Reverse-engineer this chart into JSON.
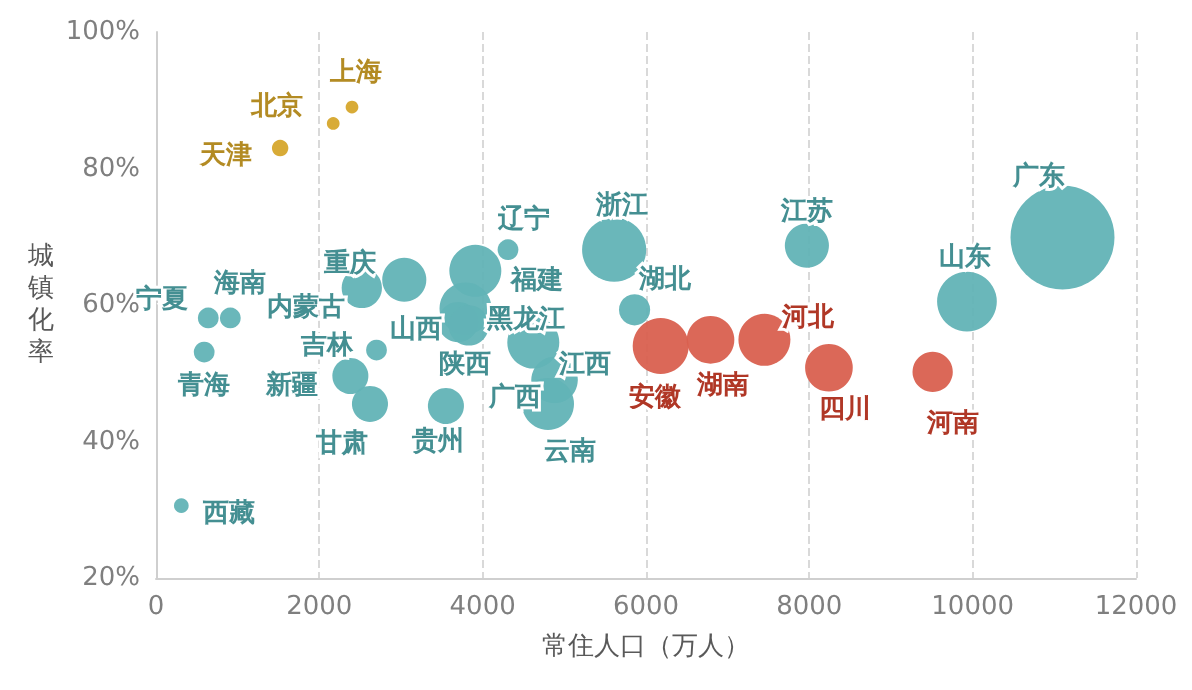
{
  "chart_data": {
    "type": "bubble",
    "xlabel": "常住人口（万人）",
    "ylabel": "城镇化率",
    "xlim": [
      0,
      12000
    ],
    "xticks": [
      0,
      2000,
      4000,
      6000,
      8000,
      10000,
      12000
    ],
    "ylim": [
      20,
      100
    ],
    "yticks": [
      {
        "value": 20,
        "label": "20%"
      },
      {
        "value": 40,
        "label": "40%"
      },
      {
        "value": 60,
        "label": "60%"
      },
      {
        "value": 80,
        "label": "80%"
      },
      {
        "value": 100,
        "label": "100%"
      }
    ],
    "grid": "x",
    "series": [
      {
        "color": "#d6a62c",
        "x": [
          2400,
          2170,
          1520
        ],
        "values": [
          89,
          86.6,
          83
        ],
        "sizes": [
          0.015,
          0.015,
          0.025
        ]
      },
      {
        "color": "#62b3b6",
        "x": [
          640,
          910,
          590,
          310,
          2520,
          3040,
          2700,
          2380,
          2620,
          3550,
          3700,
          3910,
          3790,
          3830,
          4310,
          4620,
          4880,
          4800,
          5610,
          5860,
          7970,
          9930,
          11100
        ],
        "values": [
          58.1,
          58.1,
          53.1,
          30.6,
          62.5,
          63.7,
          53.4,
          49.6,
          45.5,
          45.2,
          57.5,
          65,
          59.5,
          57,
          68.1,
          54.5,
          49,
          45.5,
          68.1,
          59.3,
          68.7,
          60.5,
          69.9
        ],
        "sizes": [
          0.04,
          0.04,
          0.04,
          0.02,
          0.15,
          0.18,
          0.04,
          0.12,
          0.12,
          0.12,
          0.15,
          0.25,
          0.25,
          0.15,
          0.04,
          0.25,
          0.2,
          0.25,
          0.38,
          0.09,
          0.18,
          0.33,
          1
        ]
      },
      {
        "color": "#d9604f",
        "x": [
          6180,
          6790,
          7450,
          8240,
          9510
        ],
        "values": [
          54,
          54.9,
          54.9,
          50.8,
          50.2
        ],
        "sizes": [
          0.29,
          0.21,
          0.25,
          0.21,
          0.15
        ]
      }
    ],
    "annotations": [
      {
        "text": "上海",
        "x": 2400,
        "y": 89
      },
      {
        "text": "北京",
        "x": 2170,
        "y": 86.6
      },
      {
        "text": "天津",
        "x": 1520,
        "y": 83
      },
      {
        "text": "宁夏",
        "x": 640,
        "y": 58.1
      },
      {
        "text": "海南",
        "x": 910,
        "y": 58.1
      },
      {
        "text": "青海",
        "x": 590,
        "y": 53.1
      },
      {
        "text": "西藏",
        "x": 310,
        "y": 30.6
      },
      {
        "text": "内蒙古",
        "x": 2520,
        "y": 62.5
      },
      {
        "text": "重庆",
        "x": 3040,
        "y": 63.7
      },
      {
        "text": "吉林",
        "x": 2700,
        "y": 53.4
      },
      {
        "text": "新疆",
        "x": 2380,
        "y": 49.6
      },
      {
        "text": "甘肃",
        "x": 2620,
        "y": 45.5
      },
      {
        "text": "贵州",
        "x": 3550,
        "y": 45.2
      },
      {
        "text": "山西",
        "x": 3700,
        "y": 57.5
      },
      {
        "text": "福建",
        "x": 3910,
        "y": 65
      },
      {
        "text": "黑龙江",
        "x": 3790,
        "y": 59.5
      },
      {
        "text": "陕西",
        "x": 3830,
        "y": 57
      },
      {
        "text": "辽宁",
        "x": 4310,
        "y": 68.1
      },
      {
        "text": "江西",
        "x": 4620,
        "y": 54.5
      },
      {
        "text": "广西",
        "x": 4880,
        "y": 49
      },
      {
        "text": "云南",
        "x": 4800,
        "y": 45.5
      },
      {
        "text": "浙江",
        "x": 5610,
        "y": 68.1
      },
      {
        "text": "湖北",
        "x": 5860,
        "y": 59.3
      },
      {
        "text": "江苏",
        "x": 7970,
        "y": 68.7
      },
      {
        "text": "山东",
        "x": 9930,
        "y": 60.5
      },
      {
        "text": "广东",
        "x": 11100,
        "y": 69.9
      },
      {
        "text": "安徽",
        "x": 6180,
        "y": 54
      },
      {
        "text": "湖南",
        "x": 6790,
        "y": 54.9
      },
      {
        "text": "河北",
        "x": 7450,
        "y": 54.9
      },
      {
        "text": "四川",
        "x": 8240,
        "y": 50.8
      },
      {
        "text": "河南",
        "x": 9510,
        "y": 50.2
      }
    ]
  }
}
